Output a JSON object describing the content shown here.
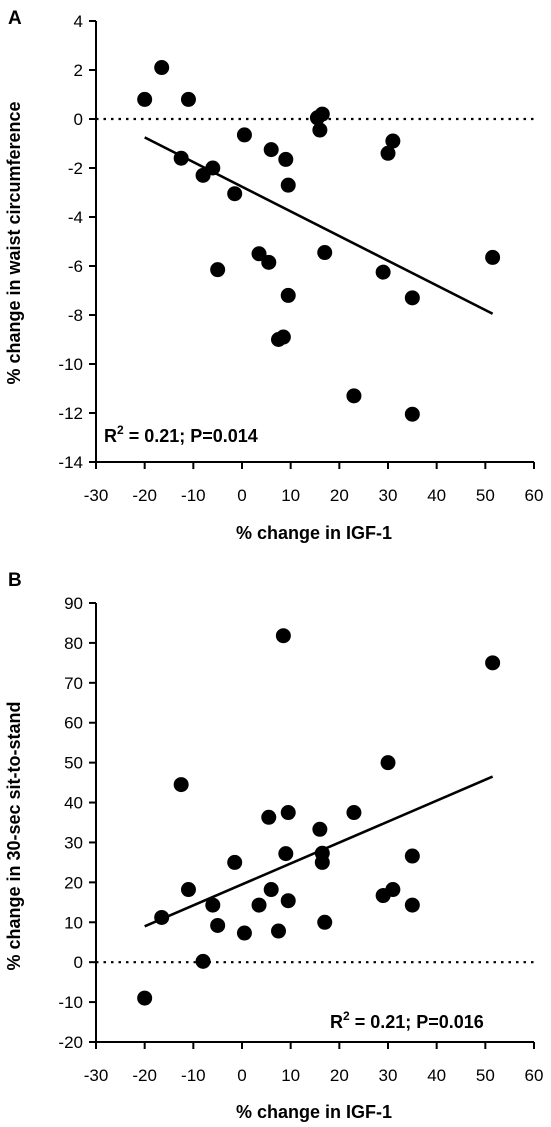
{
  "chart_data": [
    {
      "panel": "A",
      "type": "scatter",
      "xlabel": "% change in IGF-1",
      "ylabel": "% change in waist circumference",
      "xlim": [
        -30,
        60
      ],
      "ylim": [
        -14,
        4
      ],
      "xticks": [
        -30,
        -20,
        -10,
        0,
        10,
        20,
        30,
        40,
        50,
        60
      ],
      "yticks": [
        -14,
        -12,
        -10,
        -8,
        -6,
        -4,
        -2,
        0,
        2,
        4
      ],
      "annotation": {
        "r2_prefix": "R",
        "r2_sup": "2",
        "text": " = 0.21; P=0.014"
      },
      "reference_line_y": 0,
      "fit_line": {
        "x": [
          -20,
          51.5
        ],
        "y": [
          -0.75,
          -7.95
        ]
      },
      "points": [
        {
          "x": -20.0,
          "y": 0.8
        },
        {
          "x": -16.5,
          "y": 2.1
        },
        {
          "x": -11.0,
          "y": 0.8
        },
        {
          "x": -12.5,
          "y": -1.6
        },
        {
          "x": -6.0,
          "y": -2.0
        },
        {
          "x": -8.0,
          "y": -2.3
        },
        {
          "x": -1.5,
          "y": -3.05
        },
        {
          "x": 0.5,
          "y": -0.65
        },
        {
          "x": -5.0,
          "y": -6.15
        },
        {
          "x": 3.5,
          "y": -5.5
        },
        {
          "x": 5.5,
          "y": -5.85
        },
        {
          "x": 6.0,
          "y": -1.25
        },
        {
          "x": 9.0,
          "y": -1.65
        },
        {
          "x": 9.5,
          "y": -2.7
        },
        {
          "x": 9.5,
          "y": -7.2
        },
        {
          "x": 7.5,
          "y": -9.0
        },
        {
          "x": 8.5,
          "y": -8.9
        },
        {
          "x": 15.5,
          "y": 0.05
        },
        {
          "x": 16.5,
          "y": 0.2
        },
        {
          "x": 16.0,
          "y": -0.45
        },
        {
          "x": 17.0,
          "y": -5.45
        },
        {
          "x": 23.0,
          "y": -11.3
        },
        {
          "x": 29.0,
          "y": -6.25
        },
        {
          "x": 30.0,
          "y": -1.4
        },
        {
          "x": 31.0,
          "y": -0.9
        },
        {
          "x": 35.0,
          "y": -7.3
        },
        {
          "x": 35.0,
          "y": -12.05
        },
        {
          "x": 51.5,
          "y": -5.65
        }
      ]
    },
    {
      "panel": "B",
      "type": "scatter",
      "xlabel": "% change in IGF-1",
      "ylabel": "% change in 30-sec sit-to-stand",
      "xlim": [
        -30,
        60
      ],
      "ylim": [
        -20,
        90
      ],
      "xticks": [
        -30,
        -20,
        -10,
        0,
        10,
        20,
        30,
        40,
        50,
        60
      ],
      "yticks": [
        -20,
        -10,
        0,
        10,
        20,
        30,
        40,
        50,
        60,
        70,
        80,
        90
      ],
      "annotation": {
        "r2_prefix": "R",
        "r2_sup": "2",
        "text": " = 0.21; P=0.016"
      },
      "reference_line_y": 0,
      "fit_line": {
        "x": [
          -20,
          51.5
        ],
        "y": [
          9.0,
          46.5
        ]
      },
      "points": [
        {
          "x": -20.0,
          "y": -9.0
        },
        {
          "x": -16.5,
          "y": 11.2
        },
        {
          "x": -12.5,
          "y": 44.5
        },
        {
          "x": -11.0,
          "y": 18.2
        },
        {
          "x": -6.0,
          "y": 14.3
        },
        {
          "x": -5.0,
          "y": 9.2
        },
        {
          "x": -8.0,
          "y": 0.2
        },
        {
          "x": -1.5,
          "y": 25.0
        },
        {
          "x": 0.5,
          "y": 7.3
        },
        {
          "x": 3.5,
          "y": 14.3
        },
        {
          "x": 5.5,
          "y": 36.3
        },
        {
          "x": 6.0,
          "y": 18.2
        },
        {
          "x": 7.5,
          "y": 7.8
        },
        {
          "x": 8.5,
          "y": 81.8
        },
        {
          "x": 9.0,
          "y": 27.2
        },
        {
          "x": 9.5,
          "y": 37.5
        },
        {
          "x": 9.5,
          "y": 15.4
        },
        {
          "x": 16.0,
          "y": 33.3
        },
        {
          "x": 16.5,
          "y": 27.3
        },
        {
          "x": 16.5,
          "y": 25.0
        },
        {
          "x": 17.0,
          "y": 10.0
        },
        {
          "x": 23.0,
          "y": 37.5
        },
        {
          "x": 29.0,
          "y": 16.7
        },
        {
          "x": 30.0,
          "y": 50.0
        },
        {
          "x": 31.0,
          "y": 18.2
        },
        {
          "x": 35.0,
          "y": 26.6
        },
        {
          "x": 35.0,
          "y": 14.3
        },
        {
          "x": 51.5,
          "y": 75.0
        }
      ]
    }
  ]
}
